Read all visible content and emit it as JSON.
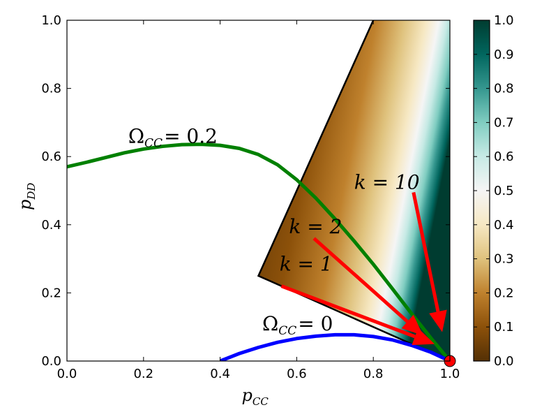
{
  "chart_data": {
    "type": "line",
    "xlabel": {
      "main": "p",
      "sub": "CC"
    },
    "ylabel": {
      "main": "p",
      "sub": "DD"
    },
    "xlim": [
      0.0,
      1.0
    ],
    "ylim": [
      0.0,
      1.0
    ],
    "xticks": [
      "0.0",
      "0.2",
      "0.4",
      "0.6",
      "0.8",
      "1.0"
    ],
    "yticks": [
      "0.0",
      "0.2",
      "0.4",
      "0.6",
      "0.8",
      "1.0"
    ],
    "grid": false,
    "colorbar": {
      "range": [
        0.0,
        1.0
      ],
      "ticks": [
        "0.0",
        "0.1",
        "0.2",
        "0.3",
        "0.4",
        "0.5",
        "0.6",
        "0.7",
        "0.8",
        "0.9",
        "1.0"
      ],
      "colormap": [
        "#543005",
        "#8c510a",
        "#bf812d",
        "#dfc27d",
        "#f6e8c3",
        "#f5f5f5",
        "#c7eae5",
        "#80cdc1",
        "#35978f",
        "#01665e",
        "#003c30"
      ]
    },
    "region": {
      "vertices": [
        [
          0.5,
          0.25
        ],
        [
          0.8,
          1.0
        ],
        [
          1.0,
          1.0
        ],
        [
          1.0,
          0.0
        ]
      ],
      "fill": "heatmap"
    },
    "series": [
      {
        "label_main": "Ω",
        "label_sub": "CC",
        "label_value": "= 0.2",
        "color": "#008000",
        "x": [
          0.0,
          0.05,
          0.1,
          0.15,
          0.2,
          0.25,
          0.3,
          0.35,
          0.4,
          0.45,
          0.5,
          0.55,
          0.6,
          0.65,
          0.7,
          0.75,
          0.8,
          0.85,
          0.9,
          0.95,
          1.0
        ],
        "y": [
          0.57,
          0.583,
          0.597,
          0.611,
          0.622,
          0.63,
          0.635,
          0.636,
          0.633,
          0.624,
          0.606,
          0.576,
          0.532,
          0.478,
          0.417,
          0.352,
          0.284,
          0.212,
          0.139,
          0.068,
          0.0
        ]
      },
      {
        "label_main": "Ω",
        "label_sub": "CC",
        "label_value": "= 0",
        "color": "#0000ff",
        "x": [
          0.4,
          0.45,
          0.5,
          0.55,
          0.6,
          0.65,
          0.7,
          0.75,
          0.8,
          0.85,
          0.9,
          0.95,
          1.0
        ],
        "y": [
          0.0,
          0.022,
          0.04,
          0.055,
          0.066,
          0.073,
          0.077,
          0.077,
          0.072,
          0.062,
          0.046,
          0.026,
          0.0
        ]
      }
    ],
    "arrows": [
      {
        "label": "k = 1",
        "start": [
          0.56,
          0.22
        ],
        "end": [
          0.96,
          0.05
        ],
        "label_at": [
          0.555,
          0.265
        ]
      },
      {
        "label": "k = 2",
        "start": [
          0.645,
          0.36
        ],
        "end": [
          0.93,
          0.075
        ],
        "label_at": [
          0.58,
          0.375
        ]
      },
      {
        "label": "k = 10",
        "start": [
          0.905,
          0.495
        ],
        "end": [
          0.98,
          0.085
        ],
        "label_at": [
          0.75,
          0.505
        ]
      }
    ],
    "point": {
      "x": 1.0,
      "y": 0.0,
      "color": "#ff0000"
    }
  }
}
